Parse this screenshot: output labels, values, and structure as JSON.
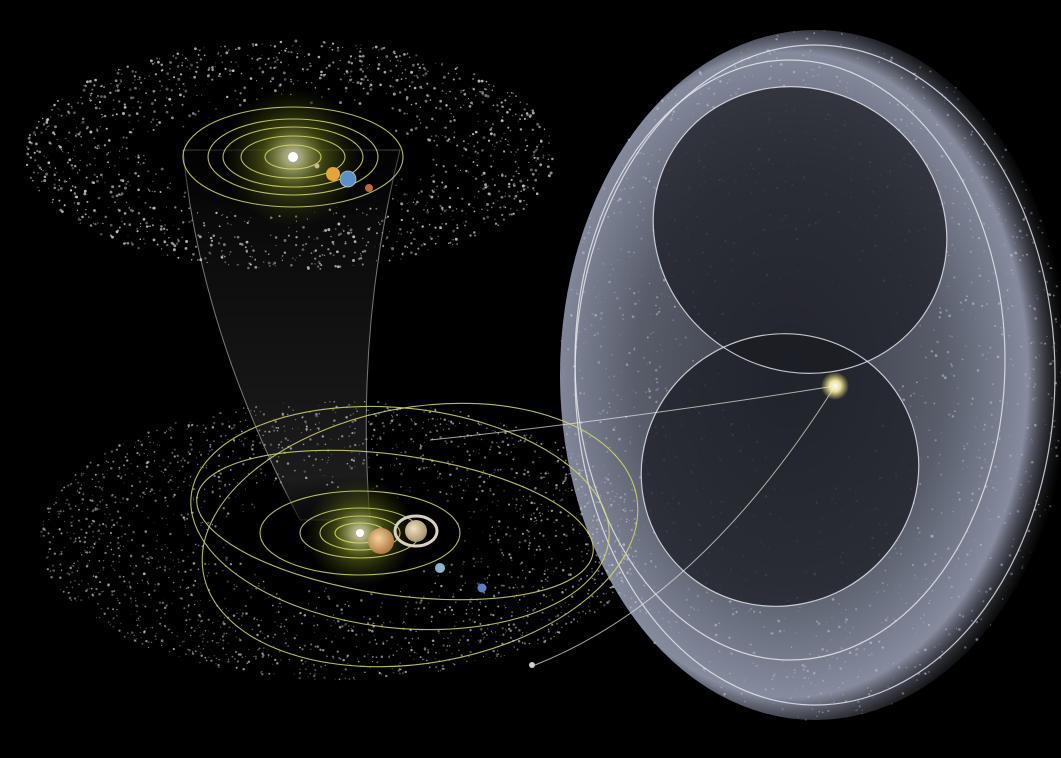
{
  "colors": {
    "background": "#000000",
    "orbit": "#d6dc6a",
    "sun_glow": "#c8d63a",
    "belt_particles": "#cfcfcf",
    "cloud_tint": "#9aa4b8",
    "connector": "#e8e8e8"
  },
  "scene": {
    "inner_system": {
      "sun": "sun-icon",
      "planets": [
        "mercury",
        "venus",
        "earth",
        "mars"
      ],
      "belt": "asteroid-belt"
    },
    "outer_system": {
      "sun": "sun-icon",
      "planets": [
        "jupiter",
        "saturn",
        "uranus",
        "neptune",
        "pluto"
      ],
      "belt": "kuiper-belt"
    },
    "oort_cloud": {
      "shape": "oort-cloud-shell",
      "center": "sun-icon"
    }
  }
}
